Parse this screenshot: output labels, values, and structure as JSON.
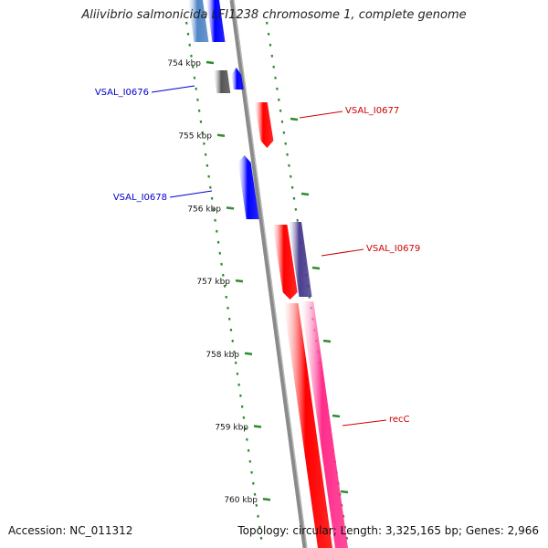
{
  "title": "Aliivibrio salmonicida LFI1238 chromosome 1, complete genome",
  "footer": {
    "accession": "Accession: NC_011312",
    "summary": "Topology: circular; Length: 3,325,165 bp; Genes: 2,966"
  },
  "colors": {
    "backbone": "#8a8a8a",
    "tick": "#2e8b2e",
    "blue_gene": "#0000ff",
    "light_blue_gene": "#4f86c6",
    "gray_gene": "#555555",
    "red_gene": "#ff0000",
    "purple_gene": "#4b3f8f",
    "pink_gene": "#ff2d8b"
  },
  "scale_labels": [
    {
      "text": "754 kbp",
      "kbp": 754
    },
    {
      "text": "755 kbp",
      "kbp": 755
    },
    {
      "text": "756 kbp",
      "kbp": 756
    },
    {
      "text": "757 kbp",
      "kbp": 757
    },
    {
      "text": "758 kbp",
      "kbp": 758
    },
    {
      "text": "759 kbp",
      "kbp": 759
    },
    {
      "text": "760 kbp",
      "kbp": 760
    }
  ],
  "gene_labels": [
    {
      "text": "VSAL_I0676",
      "side": "left",
      "color": "#0000cc",
      "kbp": 754.25
    },
    {
      "text": "VSAL_I0677",
      "side": "right",
      "color": "#cc0000",
      "kbp": 754.55
    },
    {
      "text": "VSAL_I0678",
      "side": "left",
      "color": "#0000cc",
      "kbp": 755.8
    },
    {
      "text": "VSAL_I0679",
      "side": "right",
      "color": "#cc0000",
      "kbp": 756.55
    },
    {
      "text": "recC",
      "side": "right",
      "color": "#cc0000",
      "kbp": 758.8
    }
  ]
}
